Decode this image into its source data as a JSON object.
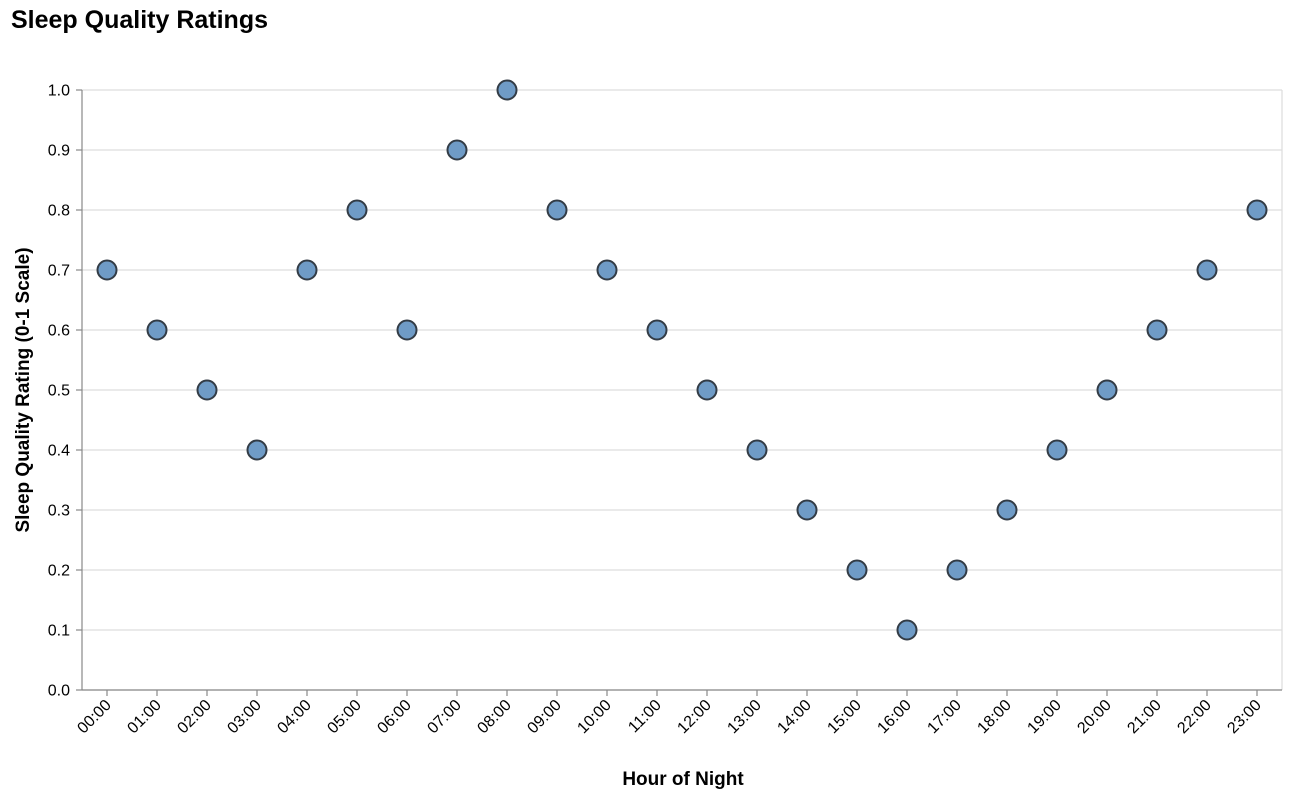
{
  "chart_data": {
    "type": "scatter",
    "title": "Sleep Quality Ratings",
    "xlabel": "Hour of Night",
    "ylabel": "Sleep Quality Rating (0-1 Scale)",
    "ylim": [
      0,
      1
    ],
    "yticks": [
      "0.0",
      "0.1",
      "0.2",
      "0.3",
      "0.4",
      "0.5",
      "0.6",
      "0.7",
      "0.8",
      "0.9",
      "1.0"
    ],
    "x": [
      "00:00",
      "01:00",
      "02:00",
      "03:00",
      "04:00",
      "05:00",
      "06:00",
      "07:00",
      "08:00",
      "09:00",
      "10:00",
      "11:00",
      "12:00",
      "13:00",
      "14:00",
      "15:00",
      "16:00",
      "17:00",
      "18:00",
      "19:00",
      "20:00",
      "21:00",
      "22:00",
      "23:00"
    ],
    "y": [
      0.7,
      0.6,
      0.5,
      0.4,
      0.7,
      0.8,
      0.6,
      0.9,
      1.0,
      0.8,
      0.7,
      0.6,
      0.5,
      0.4,
      0.3,
      0.2,
      0.1,
      0.2,
      0.3,
      0.4,
      0.5,
      0.6,
      0.7,
      0.8
    ],
    "grid": true,
    "point_color": "#6f9bc6",
    "point_stroke": "#333c46"
  }
}
